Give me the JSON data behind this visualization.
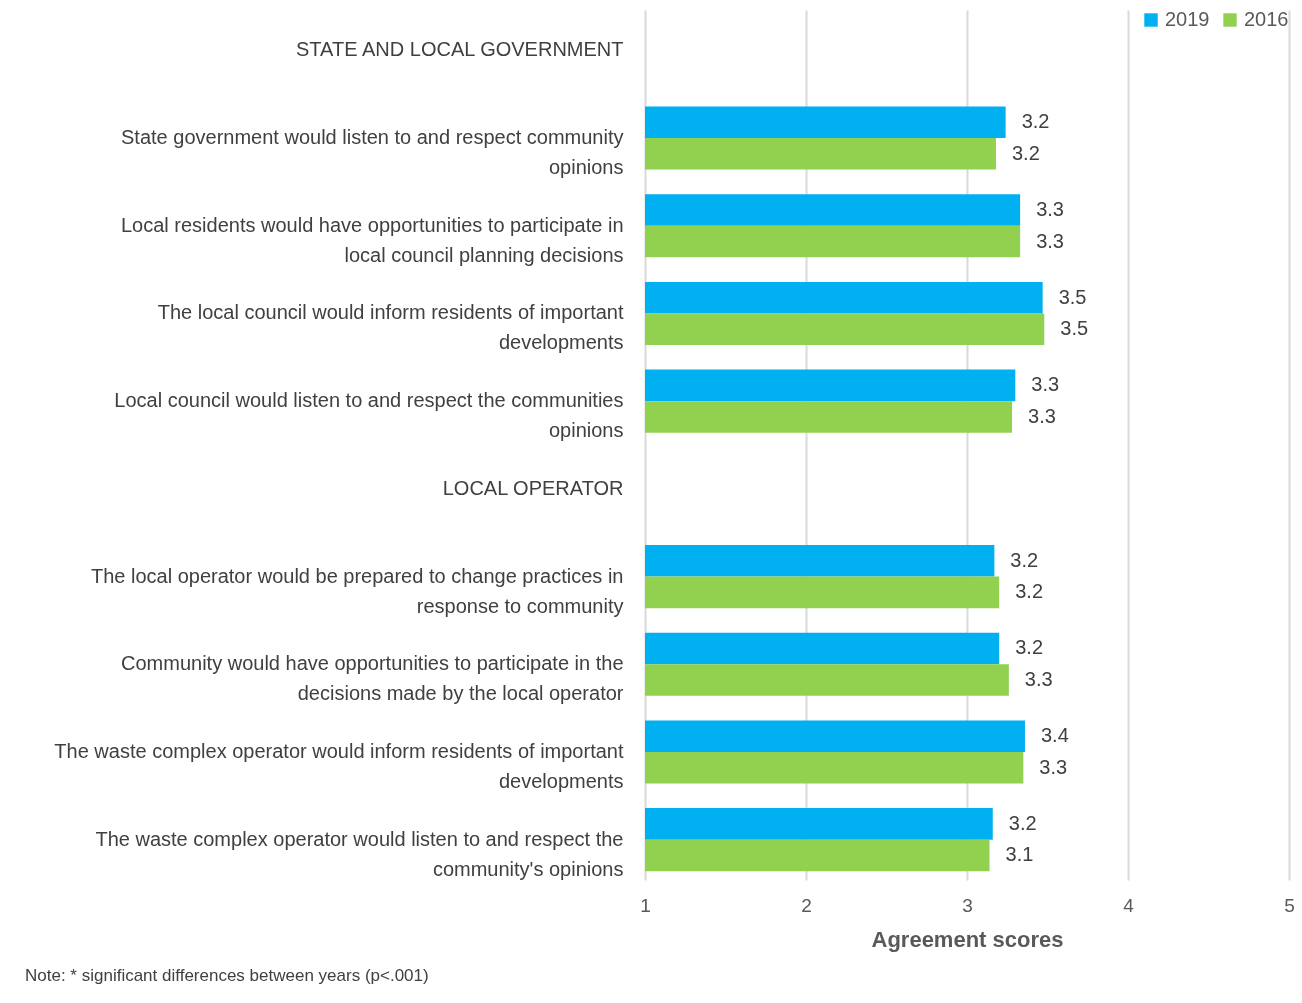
{
  "chart_data": {
    "type": "bar",
    "orientation": "horizontal",
    "categories": [
      "STATE AND LOCAL GOVERNMENT",
      "State government would listen to and respect community opinions",
      "Local residents would have opportunities to participate in local council planning decisions",
      "The local council would inform residents of important developments",
      "Local council would listen to and respect the communities opinions",
      "LOCAL OPERATOR",
      "The local operator would be prepared to change  practices in response to community",
      "Community would have opportunities to participate in the decisions made by the local operator",
      "The waste complex operator would inform residents of important developments",
      "The waste complex operator would listen to and respect the community's opinions"
    ],
    "series": [
      {
        "name": "2019",
        "color": "#00b0f0",
        "values": [
          null,
          3.24,
          3.33,
          3.47,
          3.3,
          null,
          3.17,
          3.2,
          3.36,
          3.16
        ],
        "value_labels": [
          null,
          "3.2",
          "3.3",
          "3.5",
          "3.3",
          null,
          "3.2",
          "3.2",
          "3.4",
          "3.2"
        ]
      },
      {
        "name": "2016",
        "color": "#92d050",
        "values": [
          null,
          3.18,
          3.33,
          3.48,
          3.28,
          null,
          3.2,
          3.26,
          3.35,
          3.14
        ],
        "value_labels": [
          null,
          "3.2",
          "3.3",
          "3.5",
          "3.3",
          null,
          "3.2",
          "3.3",
          "3.3",
          "3.1"
        ]
      }
    ],
    "xlim": [
      1,
      5
    ],
    "xticks": [
      1,
      2,
      3,
      4,
      5
    ],
    "xlabel": "Agreement scores",
    "grid": "x",
    "legend": "top right",
    "annotations": [
      "Note: * significant differences between years (p<.001)"
    ]
  }
}
